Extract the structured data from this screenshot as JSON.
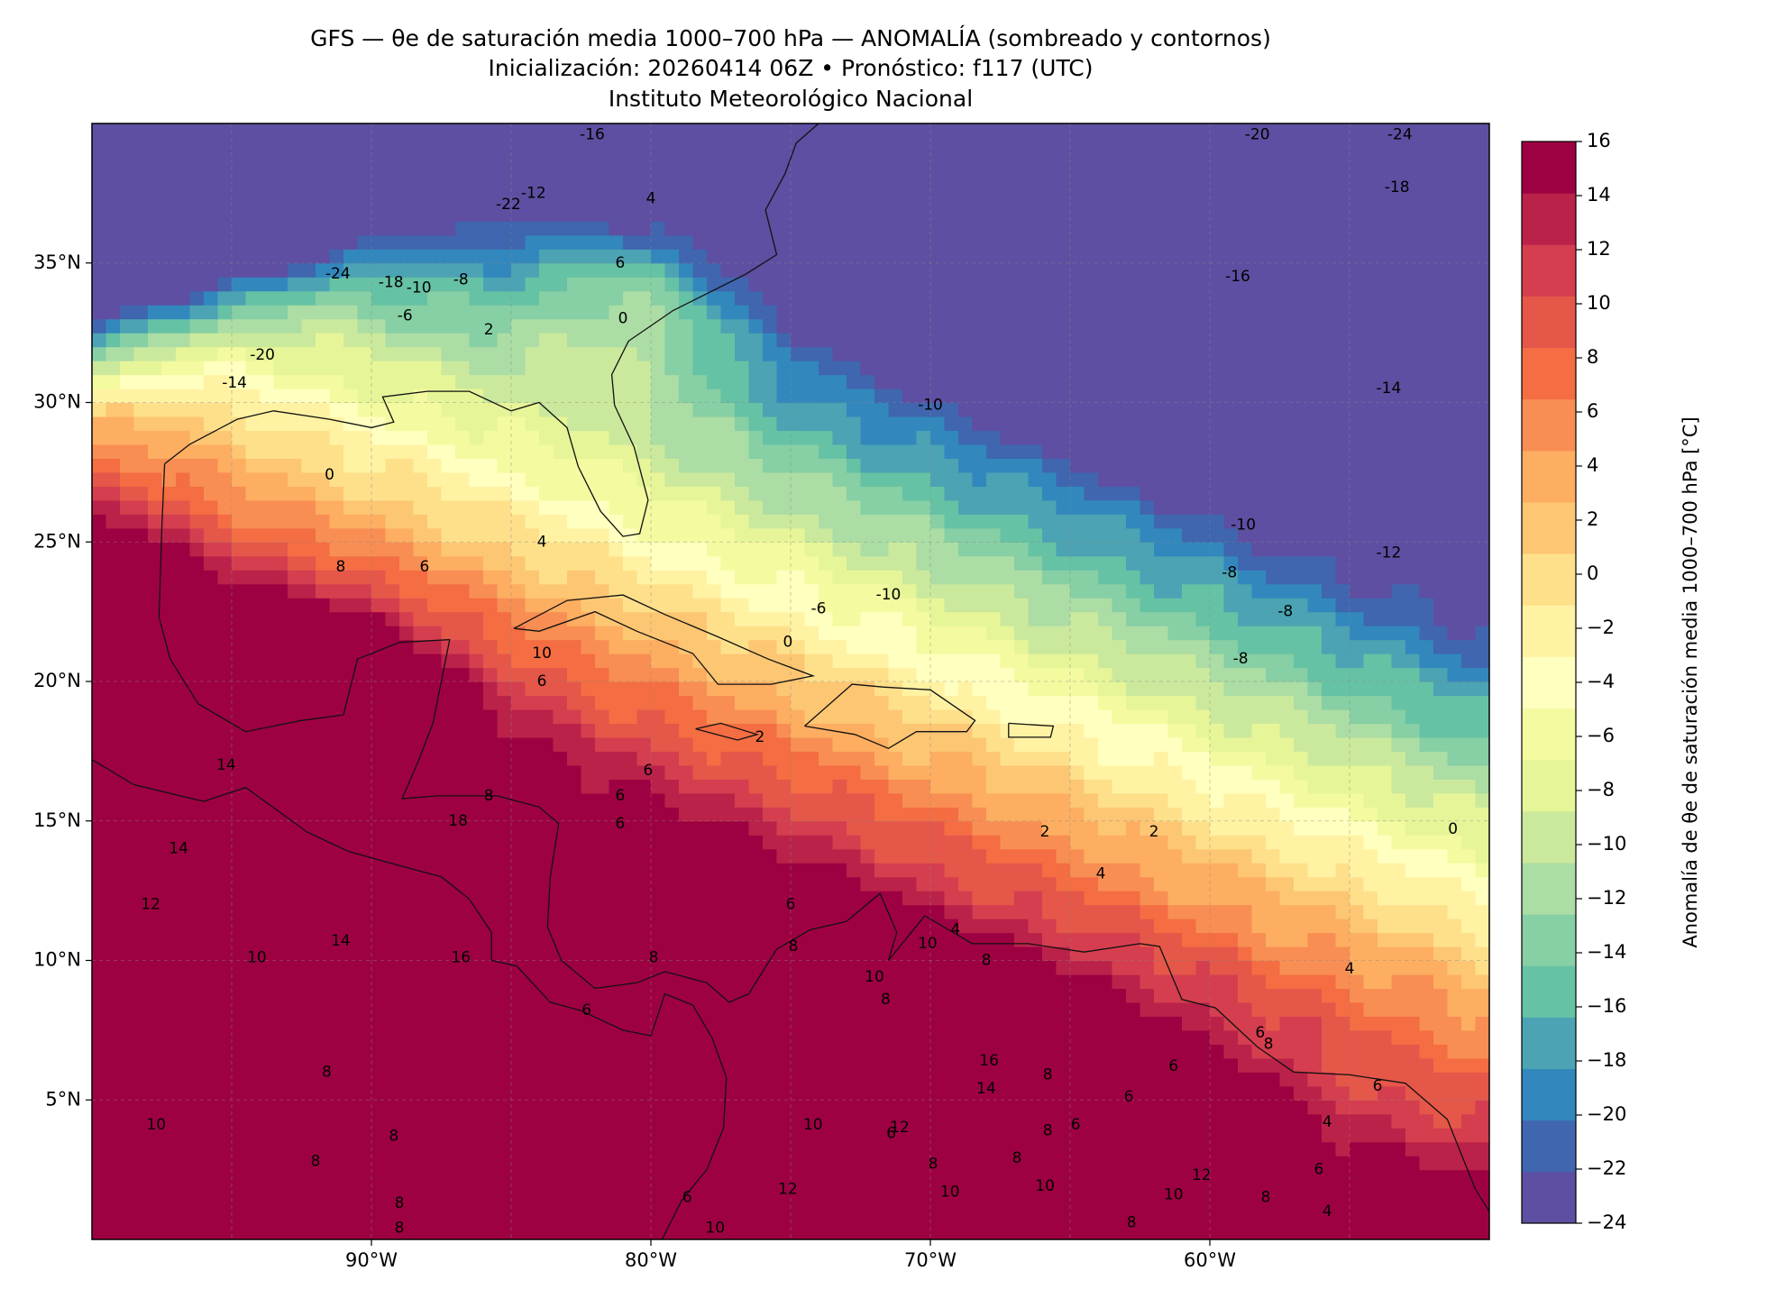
{
  "header": {
    "title_line1": "GFS — θe de saturación media 1000–700 hPa — ANOMALÍA (sombreado y contornos)",
    "title_line2": "Inicialización: 20260414 06Z   •   Pronóstico: f117 (UTC)",
    "title_line3": "Instituto Meteorológico Nacional"
  },
  "map": {
    "lon_range": [
      -100,
      -50
    ],
    "lat_range": [
      0,
      40
    ],
    "lat_ticks": [
      {
        "value": 35,
        "label": "35°N"
      },
      {
        "value": 30,
        "label": "30°N"
      },
      {
        "value": 25,
        "label": "25°N"
      },
      {
        "value": 20,
        "label": "20°N"
      },
      {
        "value": 15,
        "label": "15°N"
      },
      {
        "value": 10,
        "label": "10°N"
      },
      {
        "value": 5,
        "label": "5°N"
      }
    ],
    "lon_ticks": [
      {
        "value": -90,
        "label": "90°W"
      },
      {
        "value": -80,
        "label": "80°W"
      },
      {
        "value": -70,
        "label": "70°W"
      },
      {
        "value": -60,
        "label": "60°W"
      }
    ],
    "contour_labels": [
      {
        "text": "-20",
        "lon": -58.3,
        "lat": 39.6
      },
      {
        "text": "-24",
        "lon": -53.2,
        "lat": 39.6
      },
      {
        "text": "-18",
        "lon": -53.3,
        "lat": 37.7
      },
      {
        "text": "-16",
        "lon": -59.0,
        "lat": 34.5
      },
      {
        "text": "-14",
        "lon": -53.6,
        "lat": 30.5
      },
      {
        "text": "-10",
        "lon": -70.0,
        "lat": 29.9
      },
      {
        "text": "-10",
        "lon": -58.8,
        "lat": 25.6
      },
      {
        "text": "-10",
        "lon": -71.5,
        "lat": 23.1
      },
      {
        "text": "-12",
        "lon": -53.6,
        "lat": 24.6
      },
      {
        "text": "-8",
        "lon": -59.3,
        "lat": 23.9
      },
      {
        "text": "-8",
        "lon": -57.3,
        "lat": 22.5
      },
      {
        "text": "-8",
        "lon": -58.9,
        "lat": 20.8
      },
      {
        "text": "-6",
        "lon": -74.0,
        "lat": 22.6
      },
      {
        "text": "-24",
        "lon": -91.2,
        "lat": 34.6
      },
      {
        "text": "-20",
        "lon": -93.9,
        "lat": 31.7
      },
      {
        "text": "-14",
        "lon": -94.9,
        "lat": 30.7
      },
      {
        "text": "-18",
        "lon": -89.3,
        "lat": 34.3
      },
      {
        "text": "-10",
        "lon": -88.3,
        "lat": 34.1
      },
      {
        "text": "-6",
        "lon": -88.8,
        "lat": 33.1
      },
      {
        "text": "-8",
        "lon": -86.8,
        "lat": 34.4
      },
      {
        "text": "-12",
        "lon": -84.2,
        "lat": 37.5
      },
      {
        "text": "-22",
        "lon": -85.1,
        "lat": 37.1
      },
      {
        "text": "-16",
        "lon": -82.1,
        "lat": 39.6
      },
      {
        "text": "2",
        "lon": -85.8,
        "lat": 32.6
      },
      {
        "text": "4",
        "lon": -80.0,
        "lat": 37.3
      },
      {
        "text": "6",
        "lon": -81.1,
        "lat": 35.0
      },
      {
        "text": "0",
        "lon": -81.0,
        "lat": 33.0
      },
      {
        "text": "0",
        "lon": -91.5,
        "lat": 27.4
      },
      {
        "text": "4",
        "lon": -83.9,
        "lat": 25.0
      },
      {
        "text": "8",
        "lon": -91.1,
        "lat": 24.1
      },
      {
        "text": "6",
        "lon": -88.1,
        "lat": 24.1
      },
      {
        "text": "6",
        "lon": -83.9,
        "lat": 20.0
      },
      {
        "text": "0",
        "lon": -75.1,
        "lat": 21.4
      },
      {
        "text": "2",
        "lon": -76.1,
        "lat": 18.0
      },
      {
        "text": "6",
        "lon": -80.1,
        "lat": 16.8
      },
      {
        "text": "6",
        "lon": -81.1,
        "lat": 15.9
      },
      {
        "text": "6",
        "lon": -81.1,
        "lat": 14.9
      },
      {
        "text": "2",
        "lon": -62.0,
        "lat": 14.6
      },
      {
        "text": "2",
        "lon": -65.9,
        "lat": 14.6
      },
      {
        "text": "0",
        "lon": -51.3,
        "lat": 14.7
      },
      {
        "text": "4",
        "lon": -63.9,
        "lat": 13.1
      },
      {
        "text": "6",
        "lon": -75.0,
        "lat": 12.0
      },
      {
        "text": "8",
        "lon": -74.9,
        "lat": 10.5
      },
      {
        "text": "8",
        "lon": -79.9,
        "lat": 10.1
      },
      {
        "text": "4",
        "lon": -55.0,
        "lat": 9.7
      },
      {
        "text": "4",
        "lon": -69.1,
        "lat": 11.1
      },
      {
        "text": "10",
        "lon": -83.9,
        "lat": 21.0
      },
      {
        "text": "14",
        "lon": -95.2,
        "lat": 17.0
      },
      {
        "text": "14",
        "lon": -96.9,
        "lat": 14.0
      },
      {
        "text": "8",
        "lon": -85.8,
        "lat": 15.9
      },
      {
        "text": "18",
        "lon": -86.9,
        "lat": 15.0
      },
      {
        "text": "12",
        "lon": -97.9,
        "lat": 12.0
      },
      {
        "text": "14",
        "lon": -91.1,
        "lat": 10.7
      },
      {
        "text": "16",
        "lon": -86.8,
        "lat": 10.1
      },
      {
        "text": "10",
        "lon": -94.1,
        "lat": 10.1
      },
      {
        "text": "6",
        "lon": -82.3,
        "lat": 8.2
      },
      {
        "text": "10",
        "lon": -72.0,
        "lat": 9.4
      },
      {
        "text": "10",
        "lon": -70.1,
        "lat": 10.6
      },
      {
        "text": "8",
        "lon": -68.0,
        "lat": 10.0
      },
      {
        "text": "6",
        "lon": -58.2,
        "lat": 7.4
      },
      {
        "text": "8",
        "lon": -57.9,
        "lat": 7.0
      },
      {
        "text": "6",
        "lon": -62.9,
        "lat": 5.1
      },
      {
        "text": "6",
        "lon": -64.8,
        "lat": 4.1
      },
      {
        "text": "8",
        "lon": -65.8,
        "lat": 5.9
      },
      {
        "text": "16",
        "lon": -67.9,
        "lat": 6.4
      },
      {
        "text": "14",
        "lon": -68.0,
        "lat": 5.4
      },
      {
        "text": "12",
        "lon": -71.1,
        "lat": 4.0
      },
      {
        "text": "10",
        "lon": -74.2,
        "lat": 4.1
      },
      {
        "text": "10",
        "lon": -69.3,
        "lat": 1.7
      },
      {
        "text": "6",
        "lon": -71.4,
        "lat": 3.8
      },
      {
        "text": "8",
        "lon": -65.8,
        "lat": 3.9
      },
      {
        "text": "8",
        "lon": -91.6,
        "lat": 6.0
      },
      {
        "text": "8",
        "lon": -89.2,
        "lat": 3.7
      },
      {
        "text": "10",
        "lon": -97.7,
        "lat": 4.1
      },
      {
        "text": "8",
        "lon": -92.0,
        "lat": 2.8
      },
      {
        "text": "8",
        "lon": -89.0,
        "lat": 1.3
      },
      {
        "text": "8",
        "lon": -89.0,
        "lat": 0.4
      },
      {
        "text": "6",
        "lon": -54.0,
        "lat": 5.5
      },
      {
        "text": "4",
        "lon": -55.8,
        "lat": 4.2
      },
      {
        "text": "4",
        "lon": -55.8,
        "lat": 1.0
      },
      {
        "text": "12",
        "lon": -60.3,
        "lat": 2.3
      },
      {
        "text": "10",
        "lon": -61.3,
        "lat": 1.6
      },
      {
        "text": "8",
        "lon": -58.0,
        "lat": 1.5
      },
      {
        "text": "6",
        "lon": -56.1,
        "lat": 2.5
      },
      {
        "text": "12",
        "lon": -75.1,
        "lat": 1.8
      },
      {
        "text": "10",
        "lon": -77.7,
        "lat": 0.4
      },
      {
        "text": "6",
        "lon": -78.7,
        "lat": 1.5
      },
      {
        "text": "8",
        "lon": -69.9,
        "lat": 2.7
      },
      {
        "text": "8",
        "lon": -66.9,
        "lat": 2.9
      },
      {
        "text": "6",
        "lon": -61.3,
        "lat": 6.2
      },
      {
        "text": "8",
        "lon": -62.8,
        "lat": 0.6
      },
      {
        "text": "10",
        "lon": -65.9,
        "lat": 1.9
      },
      {
        "text": "8",
        "lon": -71.6,
        "lat": 8.6
      }
    ]
  },
  "colorbar": {
    "label": "Anomalía de θe de saturación media 1000–700 hPa [°C]",
    "tick_labels": [
      "16",
      "14",
      "12",
      "10",
      "8",
      "6",
      "4",
      "2",
      "0",
      "−2",
      "−4",
      "−6",
      "−8",
      "−10",
      "−12",
      "−14",
      "−16",
      "−18",
      "−20",
      "−22",
      "−24"
    ],
    "colors": [
      "#5e4fa2",
      "#3f66af",
      "#3288bd",
      "#4ba3b3",
      "#66c2a5",
      "#87cfa4",
      "#abdda4",
      "#cbe99d",
      "#e6f598",
      "#f4fa9f",
      "#ffffbf",
      "#fff2a3",
      "#fee08b",
      "#fdc673",
      "#fdae61",
      "#f88e53",
      "#f46d43",
      "#e55749",
      "#d53e4f",
      "#bb2249",
      "#9e0142"
    ]
  }
}
